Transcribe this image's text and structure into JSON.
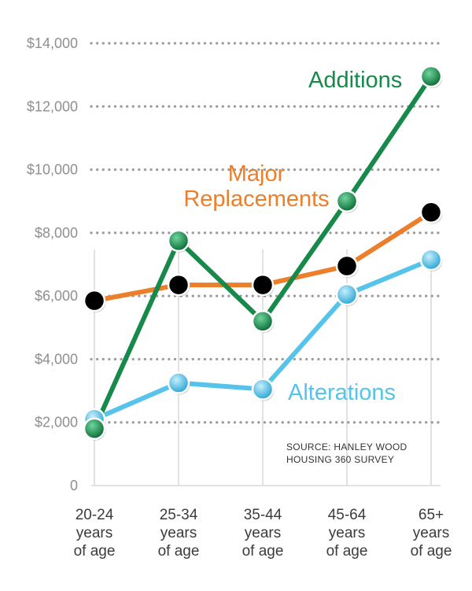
{
  "chart_data": {
    "type": "line",
    "categories": [
      [
        "20-24",
        "years",
        "of age"
      ],
      [
        "25-34",
        "years",
        "of age"
      ],
      [
        "35-44",
        "years",
        "of age"
      ],
      [
        "45-64",
        "years",
        "of age"
      ],
      [
        "65+",
        "years",
        "of age"
      ]
    ],
    "ylim": [
      0,
      14000
    ],
    "yticks": [
      {
        "value": 0,
        "label": "0"
      },
      {
        "value": 2000,
        "label": "$2,000"
      },
      {
        "value": 4000,
        "label": "$4,000"
      },
      {
        "value": 6000,
        "label": "$6,000"
      },
      {
        "value": 8000,
        "label": "$8,000"
      },
      {
        "value": 10000,
        "label": "$10,000"
      },
      {
        "value": 12000,
        "label": "$12,000"
      },
      {
        "value": 14000,
        "label": "$14,000"
      }
    ],
    "grid": "dotted-horizontal",
    "series": [
      {
        "name": "Alterations",
        "label_lines": [
          "Alterations"
        ],
        "color": "#56c3ea",
        "values": [
          2100,
          3250,
          3050,
          6050,
          7150
        ]
      },
      {
        "name": "Major Replacements",
        "label_lines": [
          "Major",
          "Replacements"
        ],
        "color": "#ec7f2b",
        "values": [
          5850,
          6350,
          6350,
          6950,
          8650
        ]
      },
      {
        "name": "Additions",
        "label_lines": [
          "Additions"
        ],
        "color": "#16894b",
        "values": [
          1800,
          7750,
          5200,
          9000,
          12950
        ]
      }
    ],
    "annotation": [
      "SOURCE: HANLEY WOOD",
      "HOUSING 360 SURVEY"
    ]
  }
}
